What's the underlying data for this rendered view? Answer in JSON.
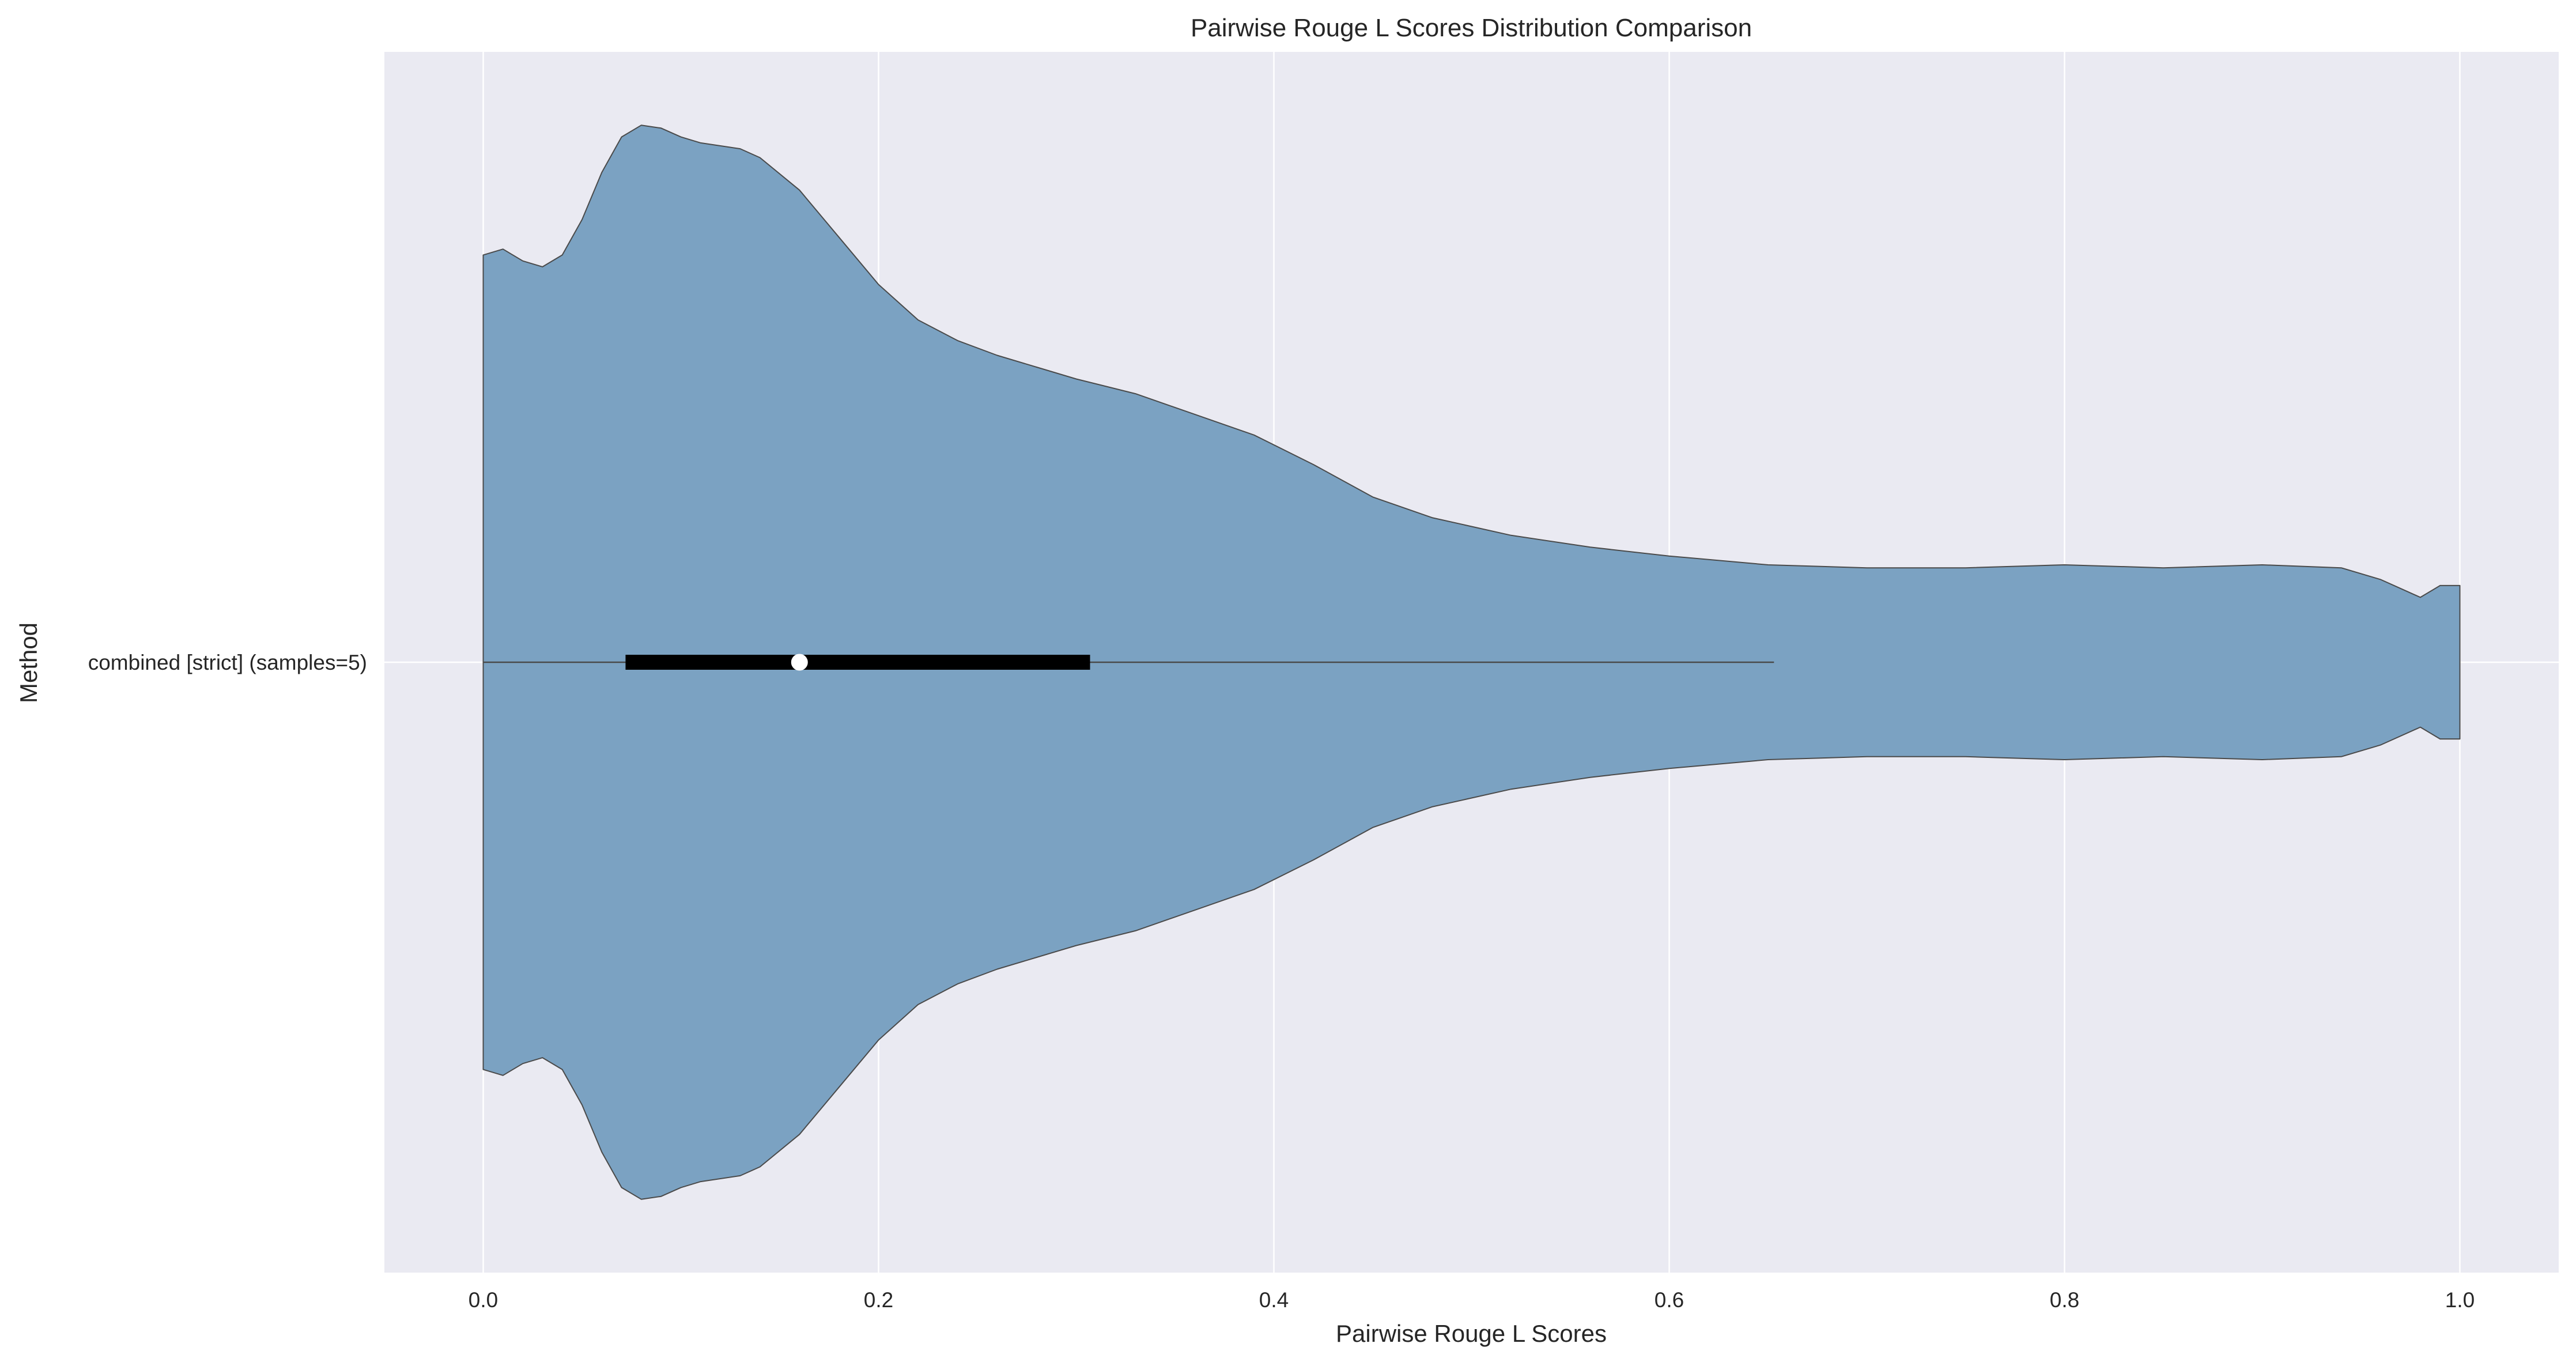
{
  "chart_data": {
    "type": "violin",
    "orientation": "horizontal",
    "title": "Pairwise Rouge L Scores Distribution Comparison",
    "xlabel": "Pairwise Rouge L Scores",
    "ylabel": "Method",
    "xlim": [
      -0.05,
      1.05
    ],
    "xticks": [
      0.0,
      0.2,
      0.4,
      0.6,
      0.8,
      1.0
    ],
    "xtick_labels": [
      "0.0",
      "0.2",
      "0.4",
      "0.6",
      "0.8",
      "1.0"
    ],
    "grid": true,
    "categories": [
      "combined [strict] (samples=5)"
    ],
    "colors": {
      "violin": "#7ba2c2",
      "edge": "#4a4a4a",
      "plot_bg": "#eaeaf2",
      "grid": "#ffffff",
      "box": "#000000",
      "median": "#ffffff"
    },
    "violins": [
      {
        "category": "combined [strict] (samples=5)",
        "whisker": [
          0.0,
          0.653
        ],
        "box": [
          0.072,
          0.307
        ],
        "median": 0.16,
        "density_relative": [
          [
            0.0,
            0.69
          ],
          [
            0.01,
            0.7
          ],
          [
            0.02,
            0.68
          ],
          [
            0.03,
            0.67
          ],
          [
            0.04,
            0.69
          ],
          [
            0.05,
            0.75
          ],
          [
            0.06,
            0.83
          ],
          [
            0.07,
            0.89
          ],
          [
            0.08,
            0.91
          ],
          [
            0.09,
            0.905
          ],
          [
            0.1,
            0.89
          ],
          [
            0.11,
            0.88
          ],
          [
            0.12,
            0.875
          ],
          [
            0.13,
            0.87
          ],
          [
            0.14,
            0.855
          ],
          [
            0.16,
            0.8
          ],
          [
            0.18,
            0.72
          ],
          [
            0.2,
            0.64
          ],
          [
            0.22,
            0.58
          ],
          [
            0.24,
            0.545
          ],
          [
            0.26,
            0.52
          ],
          [
            0.28,
            0.5
          ],
          [
            0.3,
            0.48
          ],
          [
            0.33,
            0.455
          ],
          [
            0.36,
            0.42
          ],
          [
            0.39,
            0.385
          ],
          [
            0.42,
            0.335
          ],
          [
            0.45,
            0.28
          ],
          [
            0.48,
            0.245
          ],
          [
            0.52,
            0.215
          ],
          [
            0.56,
            0.195
          ],
          [
            0.6,
            0.18
          ],
          [
            0.65,
            0.165
          ],
          [
            0.7,
            0.16
          ],
          [
            0.75,
            0.16
          ],
          [
            0.8,
            0.165
          ],
          [
            0.85,
            0.16
          ],
          [
            0.9,
            0.165
          ],
          [
            0.94,
            0.16
          ],
          [
            0.96,
            0.14
          ],
          [
            0.98,
            0.11
          ],
          [
            0.99,
            0.13
          ],
          [
            1.0,
            0.13
          ]
        ]
      }
    ]
  }
}
